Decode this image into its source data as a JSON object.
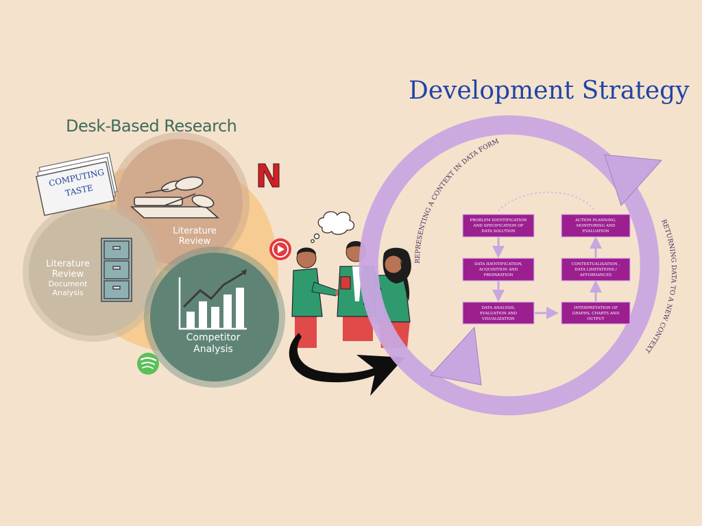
{
  "headings": {
    "development_strategy": "Development Strategy",
    "desk_based_research": "Desk-Based Research"
  },
  "book": {
    "line1": "COMPUTING",
    "line2": "TASTE"
  },
  "circles": {
    "literature_review_top": {
      "line1": "Literature",
      "line2": "Review"
    },
    "literature_review_left": {
      "line1": "Literature",
      "line2": "Review",
      "line3": "Document",
      "line4": "Analysis"
    },
    "competitor_analysis": {
      "line1": "Competitor",
      "line2": "Analysis"
    }
  },
  "brand_icons": {
    "netflix": "N",
    "youtube": "play-icon",
    "spotify": "spotify-icon"
  },
  "cycle": {
    "arc_top_label": "REPRESENTING A CONTEXT IN DATA FORM",
    "arc_right_label": "RETURNING DATA TO A NEW CONTEXT",
    "boxes": {
      "b1": {
        "l1": "PROBLEM IDENTIFICATION",
        "l2": "AND SPECIFICATION OF",
        "l3": "DATA SOLUTION"
      },
      "b2": {
        "l1": "DATA IDENTIFICATION,",
        "l2": "ACQUISITION AND",
        "l3": "PREPARATION"
      },
      "b3": {
        "l1": "DATA ANALYSIS,",
        "l2": "EVALUATION AND",
        "l3": "VISUALIZATION"
      },
      "b4": {
        "l1": "ACTION PLANNING,",
        "l2": "MONITORING AND",
        "l3": "EVALUATION"
      },
      "b5": {
        "l1": "CONTEXTUALISATION ,",
        "l2": "DATA LIMITATIONS /",
        "l3": "AFFORDANCES"
      },
      "b6": {
        "l1": "INTERPRETATION OF",
        "l2": "GRAPHS, CHARTS AND",
        "l3": "OUTPUT"
      }
    }
  },
  "colors": {
    "background": "#f5e2cc",
    "heading_blue": "#1f44a6",
    "heading_green": "#3e6b5a",
    "cycle_lilac": "#c9a6e0",
    "box_magenta": "#9c1f90"
  }
}
